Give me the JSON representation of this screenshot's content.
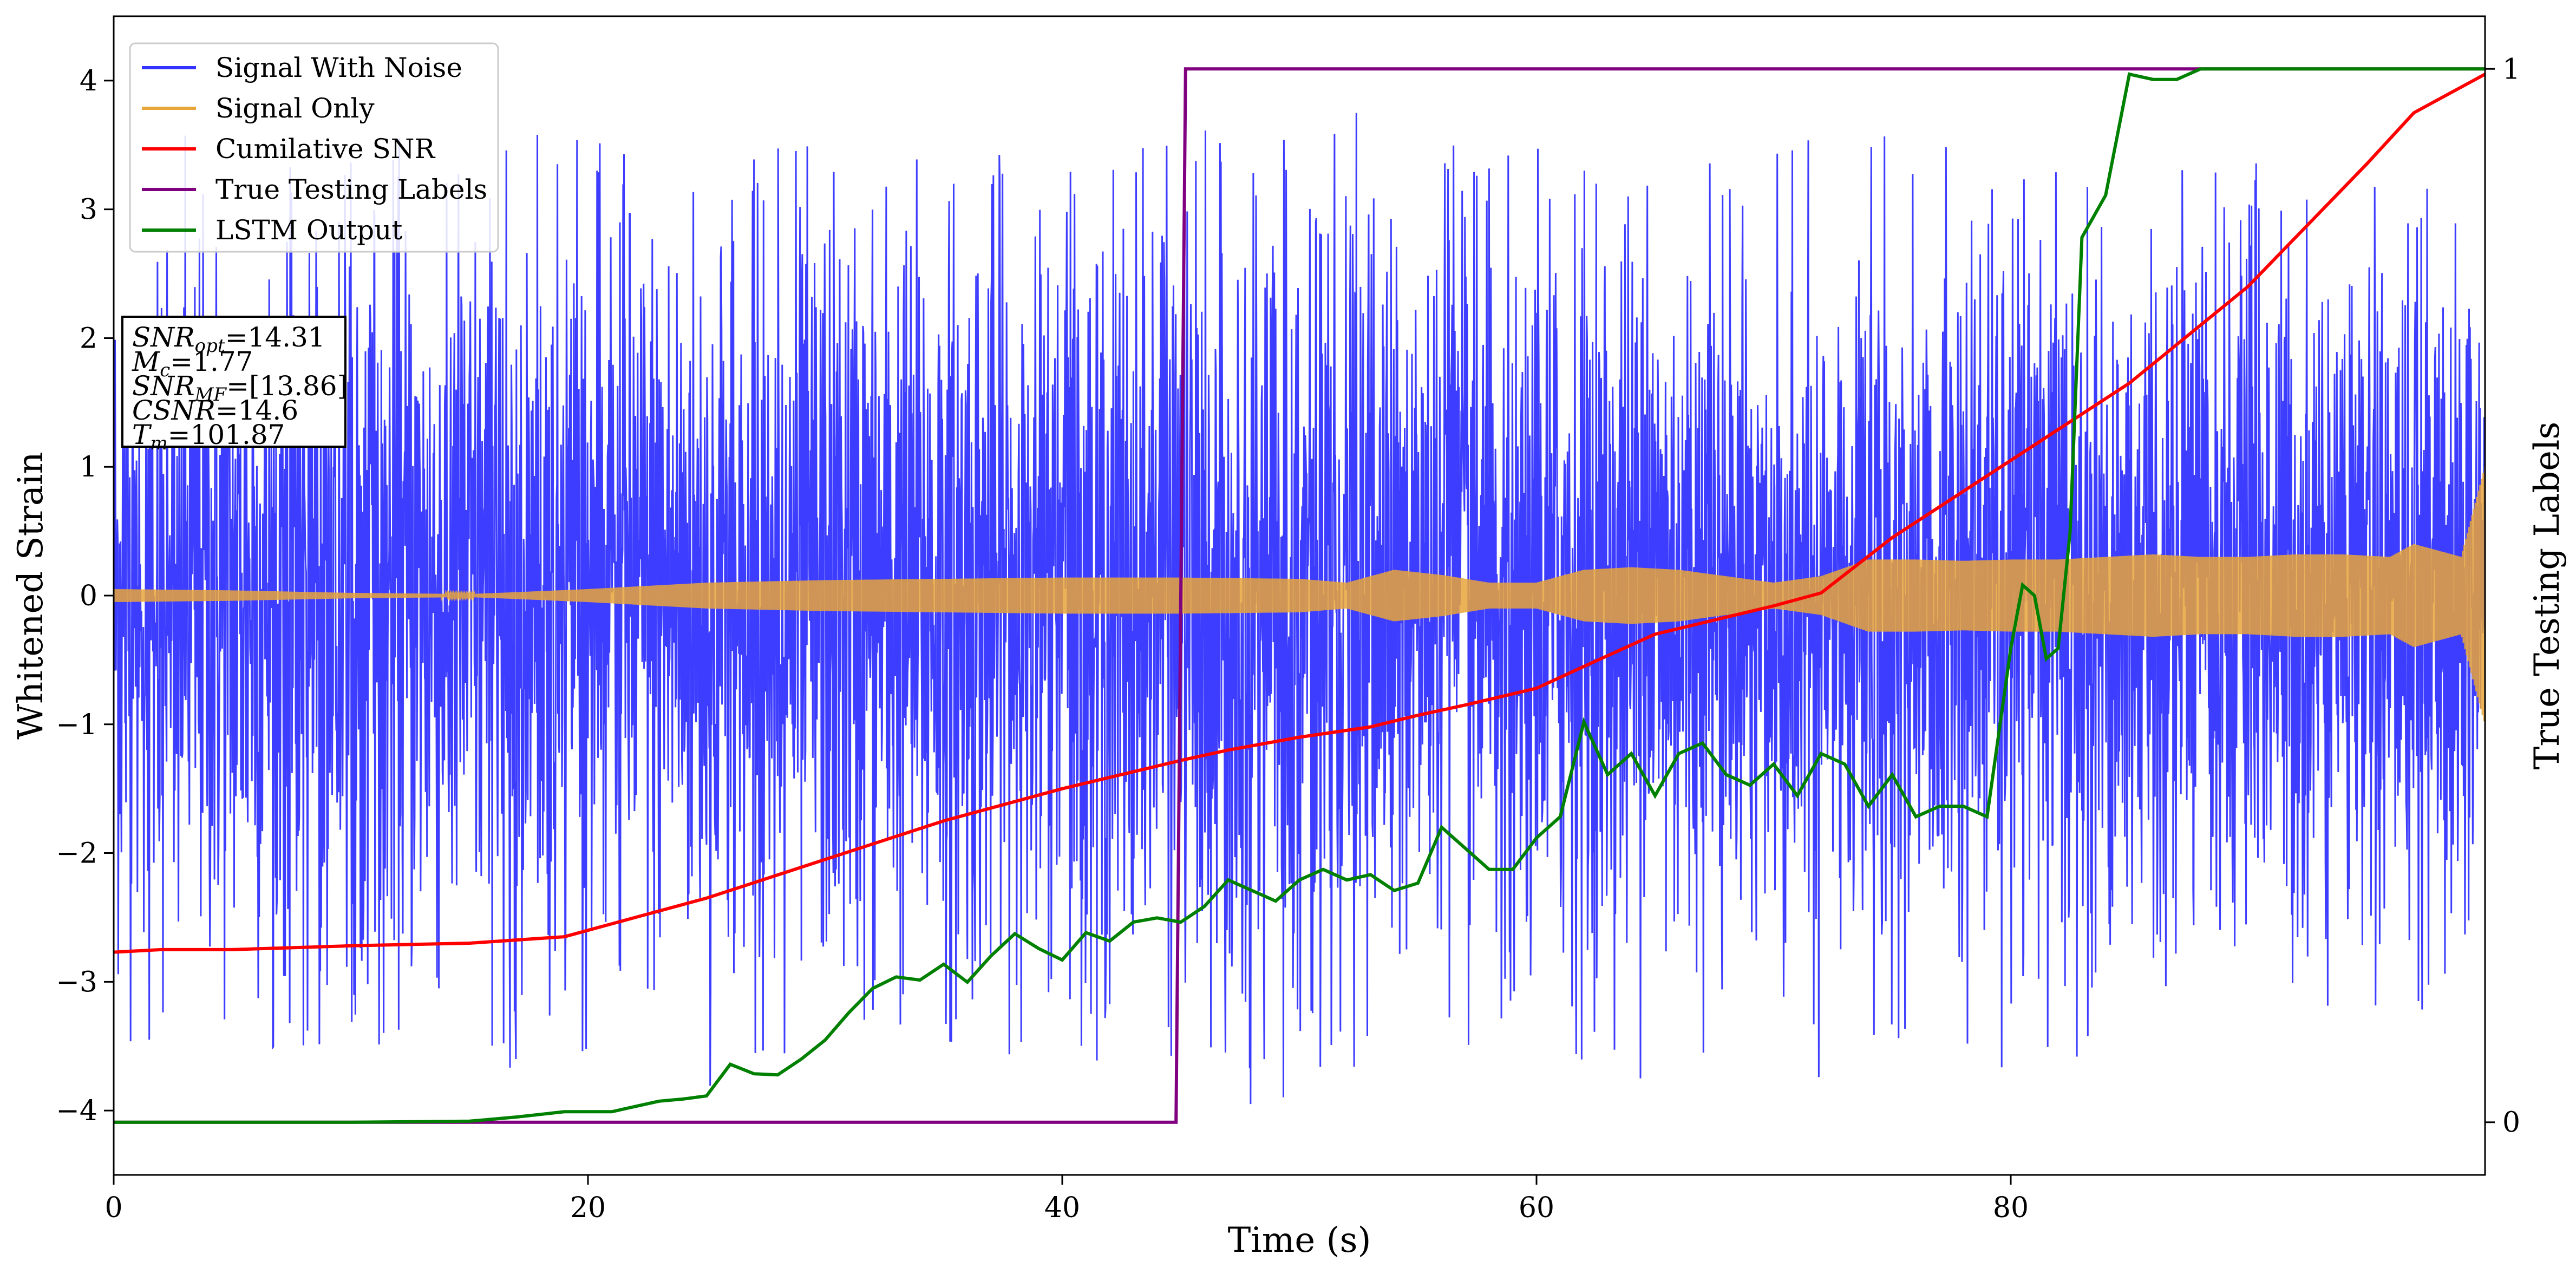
{
  "chart_data": {
    "type": "line",
    "xlabel": "Time (s)",
    "ylabel": "Whitened Strain",
    "y2label": "True Testing Labels",
    "xlim": [
      0,
      100
    ],
    "ylim": [
      -4.5,
      4.5
    ],
    "y2lim": [
      -0.05,
      1.05
    ],
    "x_ticks": [
      0,
      20,
      40,
      60,
      80
    ],
    "y_ticks": [
      -4,
      -3,
      -2,
      -1,
      0,
      1,
      2,
      3,
      4
    ],
    "y2_ticks": [
      0,
      1
    ],
    "grid": false,
    "legend_position": "top-left",
    "info_box": [
      {
        "sym": "SNR",
        "sub": "opt",
        "val": "=14.31"
      },
      {
        "sym": "M",
        "sub": "c",
        "val": "=1.77"
      },
      {
        "sym": "SNR",
        "sub": "MF",
        "val": "=[13.86]"
      },
      {
        "sym": "CSNR",
        "sub": "",
        "val": "=14.6"
      },
      {
        "sym": "T",
        "sub": "m",
        "val": "=101.87"
      }
    ],
    "series": [
      {
        "name": "Signal With Noise",
        "color": "#3333ff",
        "axis": "left",
        "style": "dense-noise",
        "x_range": [
          0,
          100
        ],
        "amplitude_envelope": {
          "x": [
            0,
            25,
            50,
            75,
            100
          ],
          "y": [
            3.4,
            3.5,
            3.6,
            3.4,
            3.2
          ]
        }
      },
      {
        "name": "Signal Only",
        "color": "#e8a53a",
        "axis": "left",
        "style": "oscillation-band",
        "envelope": {
          "x": [
            0,
            5,
            10,
            15,
            20,
            25,
            30,
            35,
            40,
            45,
            50,
            52,
            54,
            56,
            58,
            60,
            62,
            64,
            66,
            68,
            70,
            72,
            74,
            76,
            78,
            80,
            82,
            84,
            86,
            88,
            90,
            92,
            94,
            96,
            97,
            98,
            99,
            100
          ],
          "y": [
            0.05,
            0.04,
            0.02,
            0.01,
            0.05,
            0.1,
            0.12,
            0.13,
            0.14,
            0.14,
            0.13,
            0.1,
            0.2,
            0.16,
            0.1,
            0.1,
            0.2,
            0.22,
            0.2,
            0.15,
            0.1,
            0.15,
            0.28,
            0.28,
            0.27,
            0.28,
            0.28,
            0.3,
            0.32,
            0.3,
            0.3,
            0.32,
            0.32,
            0.3,
            0.4,
            0.35,
            0.3,
            1.0
          ]
        }
      },
      {
        "name": "Cumilative SNR",
        "color": "#ff0000",
        "axis": "left",
        "x": [
          0,
          2,
          5,
          10,
          15,
          19,
          20,
          22,
          25,
          30,
          35,
          40,
          45,
          47,
          50,
          53,
          55,
          57,
          60,
          62,
          65,
          70,
          72,
          75,
          80,
          85,
          90,
          95,
          97,
          99,
          100
        ],
        "y": [
          -2.77,
          -2.75,
          -2.75,
          -2.72,
          -2.7,
          -2.65,
          -2.6,
          -2.5,
          -2.35,
          -2.05,
          -1.75,
          -1.5,
          -1.28,
          -1.2,
          -1.1,
          -1.02,
          -0.93,
          -0.85,
          -0.72,
          -0.55,
          -0.3,
          -0.08,
          0.02,
          0.45,
          1.05,
          1.65,
          2.4,
          3.35,
          3.75,
          3.95,
          4.05
        ]
      },
      {
        "name": "True Testing Labels",
        "color": "#800080",
        "axis": "right",
        "x": [
          0,
          44.8,
          45.2,
          100
        ],
        "y": [
          0,
          0,
          1,
          1
        ]
      },
      {
        "name": "LSTM Output",
        "color": "#008000",
        "axis": "right",
        "x": [
          0,
          10,
          15,
          17,
          19,
          21,
          23,
          24,
          25,
          26,
          27,
          28,
          29,
          30,
          31,
          32,
          33,
          34,
          35,
          36,
          37,
          38,
          39,
          40,
          41,
          42,
          43,
          44,
          45,
          46,
          47,
          48,
          49,
          50,
          51,
          52,
          53,
          54,
          55,
          56,
          57,
          58,
          59,
          60,
          61,
          62,
          63,
          64,
          65,
          66,
          67,
          68,
          69,
          70,
          71,
          72,
          73,
          74,
          75,
          76,
          77,
          78,
          79,
          80,
          80.5,
          81,
          81.5,
          82,
          82.5,
          83,
          84,
          85,
          86,
          87,
          88,
          89,
          90,
          100
        ],
        "y": [
          0,
          0,
          0.001,
          0.005,
          0.01,
          0.01,
          0.02,
          0.022,
          0.025,
          0.055,
          0.046,
          0.045,
          0.06,
          0.078,
          0.104,
          0.127,
          0.138,
          0.135,
          0.15,
          0.133,
          0.158,
          0.179,
          0.165,
          0.154,
          0.18,
          0.172,
          0.19,
          0.194,
          0.19,
          0.205,
          0.23,
          0.22,
          0.21,
          0.23,
          0.24,
          0.23,
          0.235,
          0.22,
          0.227,
          0.28,
          0.26,
          0.24,
          0.24,
          0.27,
          0.29,
          0.38,
          0.33,
          0.35,
          0.31,
          0.35,
          0.36,
          0.33,
          0.32,
          0.34,
          0.31,
          0.35,
          0.34,
          0.3,
          0.33,
          0.29,
          0.3,
          0.3,
          0.29,
          0.45,
          0.51,
          0.5,
          0.44,
          0.45,
          0.56,
          0.84,
          0.88,
          0.995,
          0.99,
          0.99,
          1.0,
          1.0,
          1.0,
          1.0
        ]
      }
    ]
  }
}
